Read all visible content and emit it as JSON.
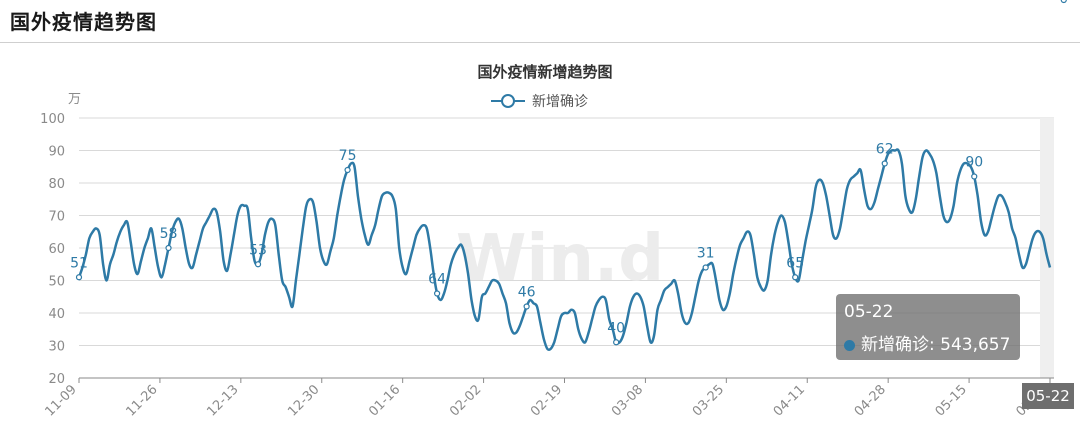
{
  "page": {
    "title": "国外疫情趋势图"
  },
  "colors": {
    "line": "#2e7aa6",
    "grid": "#d9d9d9",
    "axis": "#8a8a8a",
    "highlight_band": "#efefef"
  },
  "chart_data": {
    "type": "line",
    "title": "国外疫情新增趋势图",
    "ylabel": "万",
    "ylim": [
      20,
      100
    ],
    "yticks": [
      100,
      90,
      80,
      70,
      60,
      50,
      40,
      30,
      20
    ],
    "legend": {
      "position": "top-center"
    },
    "x_tick_labels": [
      "11-09",
      "11-26",
      "12-13",
      "12-30",
      "01-16",
      "02-02",
      "02-19",
      "03-08",
      "03-25",
      "04-11",
      "04-28",
      "05-15",
      "05-22"
    ],
    "series": [
      {
        "name": "新增确诊",
        "values": [
          51,
          54,
          58,
          63,
          65,
          66,
          64,
          55,
          50,
          55,
          58,
          62,
          65,
          67,
          68,
          62,
          55,
          52,
          56,
          60,
          63,
          66,
          60,
          54,
          51,
          55,
          60,
          65,
          68,
          69,
          66,
          60,
          55,
          54,
          58,
          62,
          66,
          68,
          70,
          72,
          71,
          65,
          56,
          53,
          58,
          64,
          70,
          73,
          73,
          72,
          63,
          56,
          55,
          58,
          64,
          68,
          69,
          67,
          58,
          50,
          48,
          45,
          42,
          50,
          58,
          66,
          73,
          75,
          74,
          68,
          60,
          56,
          55,
          59,
          63,
          70,
          76,
          81,
          84,
          86,
          85,
          76,
          69,
          64,
          61,
          64,
          67,
          72,
          76,
          77,
          77,
          76,
          72,
          60,
          54,
          52,
          56,
          60,
          64,
          66,
          67,
          66,
          60,
          52,
          46,
          44,
          46,
          50,
          55,
          58,
          60,
          61,
          58,
          52,
          44,
          39,
          38,
          45,
          46,
          48,
          50,
          50,
          49,
          46,
          43,
          37,
          34,
          34,
          36,
          39,
          42,
          44,
          43,
          42,
          37,
          32,
          29,
          29,
          31,
          35,
          39,
          40,
          40,
          41,
          40,
          35,
          32,
          31,
          34,
          38,
          42,
          44,
          45,
          44,
          38,
          35,
          31,
          31,
          33,
          37,
          42,
          45,
          46,
          45,
          42,
          36,
          31,
          33,
          41,
          44,
          47,
          48,
          49,
          50,
          46,
          40,
          37,
          37,
          40,
          45,
          50,
          53,
          54,
          55,
          55,
          50,
          44,
          41,
          42,
          46,
          52,
          57,
          61,
          63,
          65,
          64,
          58,
          51,
          48,
          47,
          50,
          58,
          64,
          68,
          70,
          68,
          62,
          55,
          51,
          50,
          56,
          62,
          67,
          72,
          79,
          81,
          80,
          76,
          70,
          64,
          63,
          66,
          72,
          78,
          81,
          82,
          83,
          84,
          78,
          73,
          72,
          74,
          78,
          82,
          86,
          89,
          90,
          90,
          90,
          86,
          76,
          72,
          71,
          75,
          82,
          88,
          90,
          89,
          87,
          83,
          76,
          70,
          68,
          69,
          73,
          80,
          84,
          86,
          86,
          85,
          82,
          76,
          68,
          64,
          65,
          69,
          73,
          76,
          76,
          74,
          71,
          66,
          63,
          58,
          54,
          55,
          59,
          63,
          65,
          65,
          63,
          58,
          54
        ]
      }
    ],
    "data_labels": [
      {
        "index": 0,
        "text": "51"
      },
      {
        "index": 26,
        "text": "58"
      },
      {
        "index": 52,
        "text": "53"
      },
      {
        "index": 78,
        "text": "75"
      },
      {
        "index": 104,
        "text": "64"
      },
      {
        "index": 130,
        "text": "46"
      },
      {
        "index": 156,
        "text": "40"
      },
      {
        "index": 182,
        "text": "31"
      },
      {
        "index": 208,
        "text": "65"
      },
      {
        "index": 234,
        "text": "62"
      },
      {
        "index": 260,
        "text": "90"
      },
      {
        "index": 286,
        "text": ""
      },
      {
        "index": 298,
        "text": "54"
      }
    ],
    "watermark": "Win.d"
  },
  "tooltip": {
    "date": "05-22",
    "series_name": "新增确诊",
    "value_text": "543,657"
  },
  "axis_pointer": {
    "label": "05-22"
  }
}
